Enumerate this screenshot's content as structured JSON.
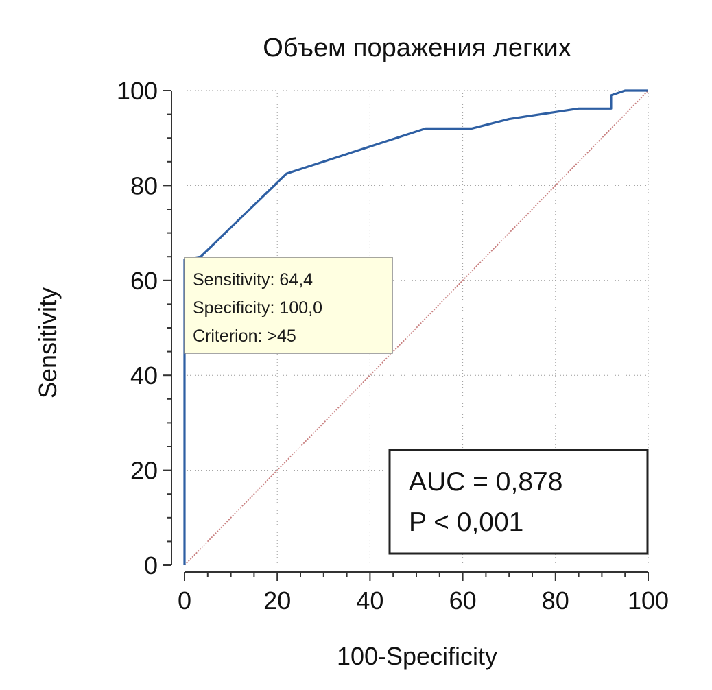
{
  "chart_data": {
    "type": "line",
    "title": "Объем поражения легких",
    "xlabel": "100-Specificity",
    "ylabel": "Sensitivity",
    "xlim": [
      0,
      100
    ],
    "ylim": [
      0,
      100
    ],
    "xticks": [
      0,
      20,
      40,
      60,
      80,
      100
    ],
    "yticks": [
      0,
      20,
      40,
      60,
      80,
      100
    ],
    "grid": true,
    "series": [
      {
        "color": "#2e5fa3",
        "x": [
          0,
          0,
          0,
          3.5,
          22,
          52,
          62,
          70,
          85,
          92,
          92,
          95,
          97,
          100
        ],
        "y": [
          0,
          45,
          64.4,
          65,
          82.5,
          92,
          92,
          94,
          96.2,
          96.2,
          99,
          100,
          100,
          100
        ]
      },
      {
        "color": "#c87f7f",
        "style": "dotted",
        "x": [
          0,
          100
        ],
        "y": [
          0,
          100
        ]
      }
    ],
    "tooltip": {
      "lines": [
        "Sensitivity: 64,4",
        "Specificity: 100,0",
        "Criterion: >45"
      ]
    },
    "annotation": {
      "lines": [
        "AUC = 0,878",
        "P < 0,001"
      ]
    }
  }
}
